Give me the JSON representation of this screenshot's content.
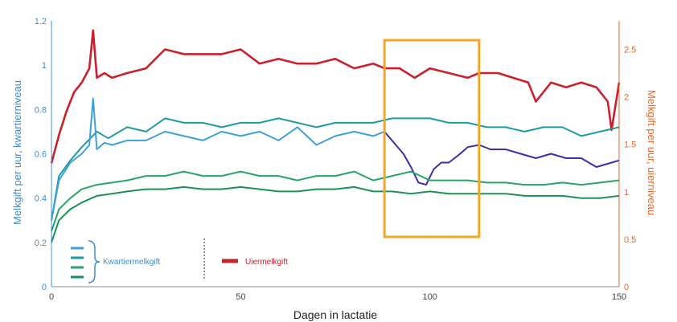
{
  "chart_data": {
    "type": "line",
    "xlabel": "Dagen in lactatie",
    "ylabel_left": "Melkgift per uur, kwartierniveau",
    "ylabel_right": "Melkgift per uur, uierniveau",
    "xlim": [
      0,
      150
    ],
    "ylim_left": [
      0,
      1.2
    ],
    "ylim_right": [
      0,
      2.8
    ],
    "x_ticks": [
      "0",
      "50",
      "100",
      "150"
    ],
    "y_left_ticks": [
      "0",
      "0.2",
      "0.4",
      "0.6",
      "0.8",
      "1",
      "1.2"
    ],
    "y_right_ticks": [
      "0",
      "0.5",
      "1",
      "1.5",
      "2",
      "2.5"
    ],
    "grid": false,
    "legend": {
      "placement": "bottom-left",
      "entries": [
        "Kwartiermelkgift",
        "Uiermelkgift"
      ]
    },
    "highlight": {
      "x_range": [
        88,
        113
      ],
      "color": "#f5a623"
    },
    "series": [
      {
        "axis": "right",
        "color": "#c8202c",
        "x": [
          0,
          2,
          4,
          6,
          8,
          10,
          11,
          12,
          14,
          16,
          20,
          25,
          30,
          35,
          40,
          45,
          50,
          55,
          60,
          65,
          70,
          75,
          80,
          85,
          88,
          92,
          96,
          100,
          105,
          110,
          113,
          118,
          122,
          126,
          128,
          132,
          136,
          140,
          144,
          147,
          148,
          150
        ],
        "values": [
          1.3,
          1.6,
          1.85,
          2.05,
          2.15,
          2.3,
          2.7,
          2.2,
          2.25,
          2.2,
          2.25,
          2.3,
          2.5,
          2.45,
          2.45,
          2.45,
          2.5,
          2.35,
          2.4,
          2.35,
          2.35,
          2.4,
          2.3,
          2.35,
          2.3,
          2.3,
          2.2,
          2.3,
          2.25,
          2.2,
          2.25,
          2.25,
          2.2,
          2.15,
          1.95,
          2.15,
          2.1,
          2.15,
          2.1,
          1.95,
          1.65,
          2.15
        ]
      },
      {
        "axis": "left",
        "color": "#1f9c9e",
        "x": [
          0,
          2,
          5,
          8,
          12,
          15,
          20,
          25,
          30,
          35,
          40,
          45,
          50,
          55,
          60,
          65,
          70,
          75,
          80,
          85,
          90,
          95,
          100,
          105,
          110,
          115,
          120,
          125,
          130,
          135,
          140,
          145,
          150
        ],
        "values": [
          0.3,
          0.5,
          0.57,
          0.63,
          0.7,
          0.67,
          0.72,
          0.7,
          0.76,
          0.74,
          0.74,
          0.72,
          0.74,
          0.74,
          0.76,
          0.74,
          0.72,
          0.74,
          0.74,
          0.74,
          0.76,
          0.76,
          0.76,
          0.74,
          0.74,
          0.72,
          0.72,
          0.7,
          0.72,
          0.72,
          0.68,
          0.7,
          0.72
        ]
      },
      {
        "axis": "left",
        "color": "#3fa0d8",
        "x": [
          0,
          2,
          5,
          8,
          10,
          11,
          12,
          14,
          16,
          20,
          25,
          30,
          35,
          40,
          45,
          50,
          55,
          60,
          65,
          70,
          75,
          80,
          85,
          88
        ],
        "values": [
          0.3,
          0.48,
          0.56,
          0.6,
          0.64,
          0.85,
          0.62,
          0.65,
          0.64,
          0.66,
          0.66,
          0.7,
          0.68,
          0.66,
          0.7,
          0.68,
          0.7,
          0.66,
          0.72,
          0.64,
          0.68,
          0.7,
          0.68,
          0.7
        ]
      },
      {
        "axis": "left",
        "color": "#3b2fa3",
        "x": [
          88,
          91,
          93,
          95,
          97,
          99,
          101,
          103,
          105,
          108,
          110,
          113,
          116,
          120,
          124,
          128,
          132,
          136,
          140,
          144,
          148,
          150
        ],
        "values": [
          0.7,
          0.64,
          0.6,
          0.54,
          0.47,
          0.46,
          0.53,
          0.56,
          0.56,
          0.6,
          0.63,
          0.64,
          0.62,
          0.62,
          0.6,
          0.58,
          0.6,
          0.58,
          0.58,
          0.54,
          0.56,
          0.57
        ]
      },
      {
        "axis": "left",
        "color": "#2aa36a",
        "x": [
          0,
          2,
          5,
          8,
          12,
          16,
          20,
          25,
          30,
          35,
          40,
          45,
          50,
          55,
          60,
          65,
          70,
          75,
          80,
          85,
          90,
          95,
          100,
          105,
          110,
          115,
          120,
          125,
          130,
          135,
          140,
          145,
          150
        ],
        "values": [
          0.25,
          0.35,
          0.4,
          0.44,
          0.46,
          0.47,
          0.48,
          0.5,
          0.5,
          0.52,
          0.5,
          0.5,
          0.52,
          0.5,
          0.5,
          0.48,
          0.5,
          0.5,
          0.52,
          0.48,
          0.5,
          0.52,
          0.48,
          0.48,
          0.48,
          0.47,
          0.47,
          0.46,
          0.46,
          0.47,
          0.46,
          0.47,
          0.48
        ]
      },
      {
        "axis": "left",
        "color": "#1e8f58",
        "x": [
          0,
          2,
          5,
          8,
          12,
          16,
          20,
          25,
          30,
          35,
          40,
          45,
          50,
          55,
          60,
          65,
          70,
          75,
          80,
          85,
          90,
          95,
          100,
          105,
          110,
          115,
          120,
          125,
          130,
          135,
          140,
          145,
          150
        ],
        "values": [
          0.2,
          0.3,
          0.35,
          0.38,
          0.41,
          0.42,
          0.43,
          0.44,
          0.44,
          0.45,
          0.44,
          0.44,
          0.45,
          0.44,
          0.43,
          0.43,
          0.44,
          0.44,
          0.45,
          0.43,
          0.43,
          0.42,
          0.43,
          0.42,
          0.42,
          0.42,
          0.42,
          0.41,
          0.41,
          0.41,
          0.4,
          0.4,
          0.41
        ]
      }
    ]
  }
}
